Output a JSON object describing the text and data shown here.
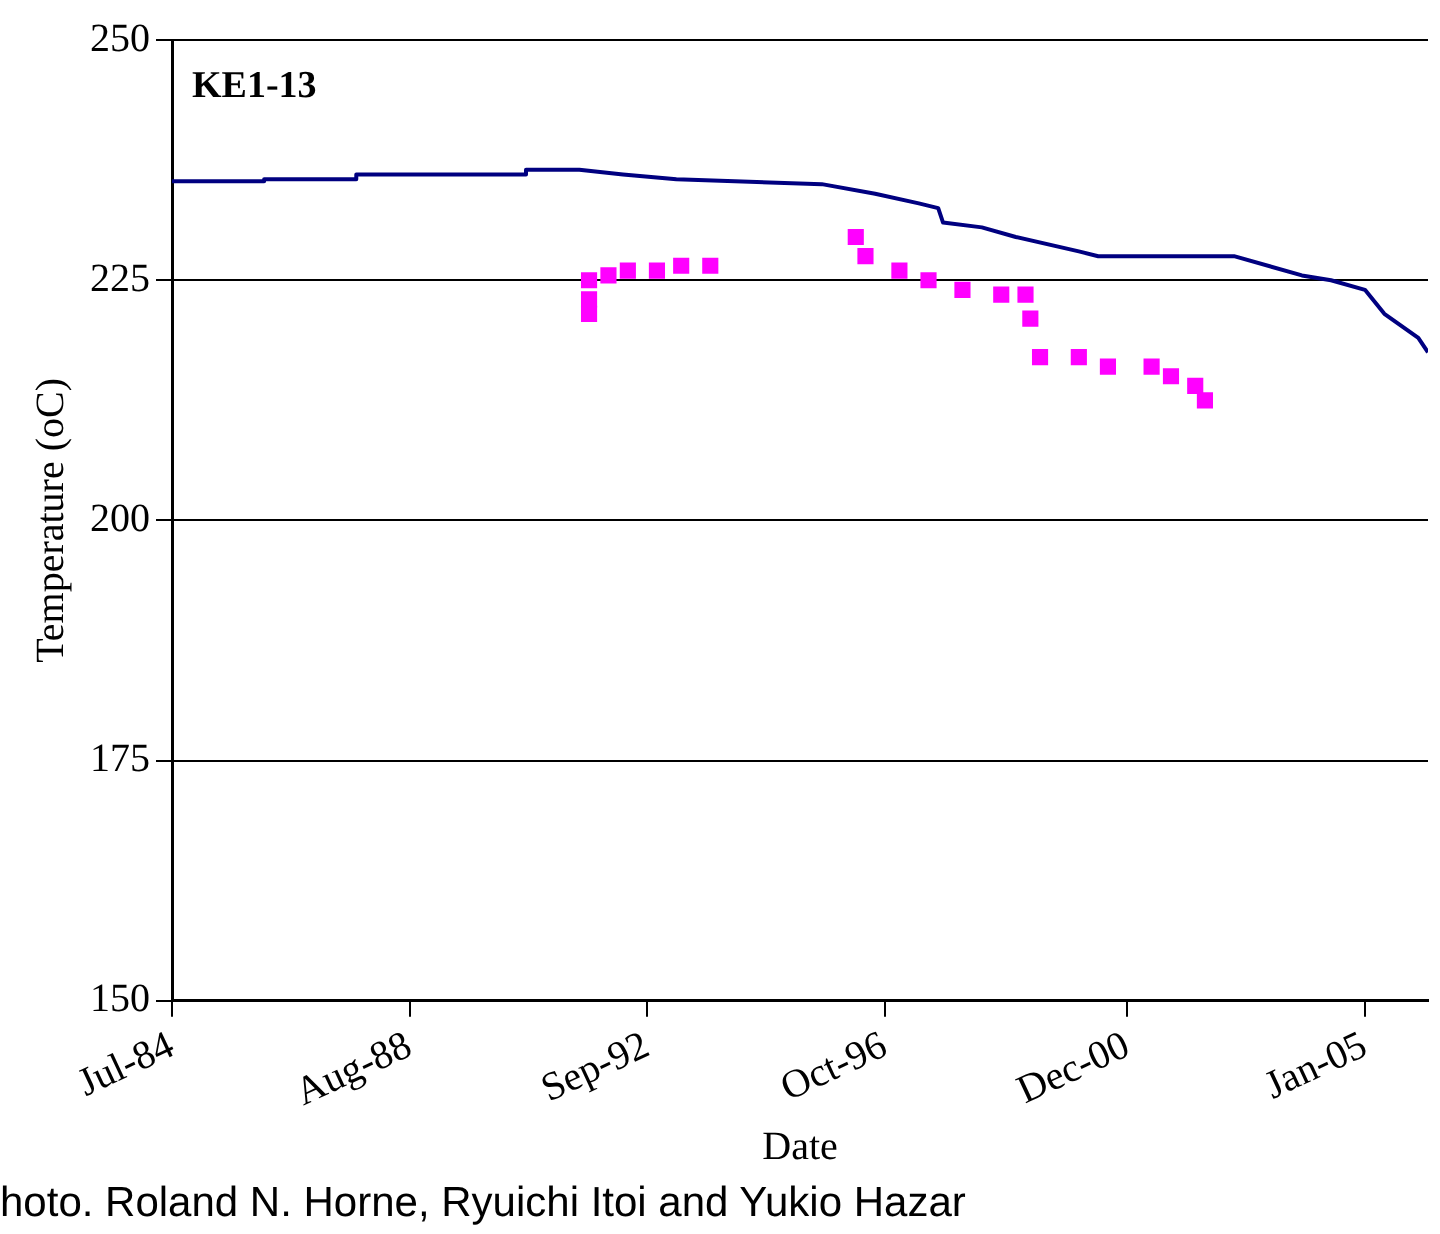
{
  "chart_data": {
    "type": "line",
    "title": "KE1-13",
    "xlabel": "Date",
    "ylabel": "Temperature (oC)",
    "xlim": [
      "1984-07",
      "2006-02"
    ],
    "xticks": [
      {
        "value": "1984-07",
        "label": "Jul-84"
      },
      {
        "value": "1988-08",
        "label": "Aug-88"
      },
      {
        "value": "1992-09",
        "label": "Sep-92"
      },
      {
        "value": "1996-10",
        "label": "Oct-96"
      },
      {
        "value": "2000-12",
        "label": "Dec-00"
      },
      {
        "value": "2005-01",
        "label": "Jan-05"
      }
    ],
    "ylim": [
      150,
      250
    ],
    "yticks": [
      150,
      175,
      200,
      225,
      250
    ],
    "grid": "y",
    "legend": false,
    "series": [
      {
        "marker": "none",
        "color": "#000080",
        "x": [
          "1984-07",
          "1986-02",
          "1986-02",
          "1987-09",
          "1987-09",
          "1990-08",
          "1990-08",
          "1991-07",
          "1992-04",
          "1993-03",
          "1995-09",
          "1996-08",
          "1997-05",
          "1997-09",
          "1997-10",
          "1998-06",
          "1999-01",
          "2000-02",
          "2000-06",
          "2002-10",
          "2003-12",
          "2004-06",
          "2005-01",
          "2005-05",
          "2005-12",
          "2006-02"
        ],
        "values": [
          235.3,
          235.3,
          235.5,
          235.5,
          236,
          236,
          236.5,
          236.5,
          236,
          235.5,
          235,
          234,
          233,
          232.5,
          231,
          230.5,
          229.5,
          228,
          227.5,
          227.5,
          225.5,
          225,
          224,
          221.5,
          219,
          217.5
        ]
      },
      {
        "type": "scatter",
        "marker": "square",
        "color": "#ff00ff",
        "x": [
          "1991-09",
          "1991-09",
          "1991-09",
          "1992-01",
          "1992-05",
          "1992-11",
          "1993-04",
          "1993-10",
          "1996-04",
          "1996-06",
          "1997-01",
          "1997-07",
          "1998-02",
          "1998-10",
          "1999-03",
          "1999-04",
          "1999-06",
          "2000-02",
          "2000-08",
          "2001-05",
          "2001-09",
          "2002-02",
          "2002-04"
        ],
        "values": [
          221.5,
          223,
          225,
          225.5,
          226,
          226,
          226.5,
          226.5,
          229.5,
          227.5,
          226,
          225,
          224,
          223.5,
          223.5,
          221,
          217,
          217,
          216,
          216,
          215,
          214,
          212.5
        ]
      }
    ],
    "annotations": [
      "hoto. Roland N. Horne, Ryuichi Itoi and Yukio Hazar"
    ]
  }
}
